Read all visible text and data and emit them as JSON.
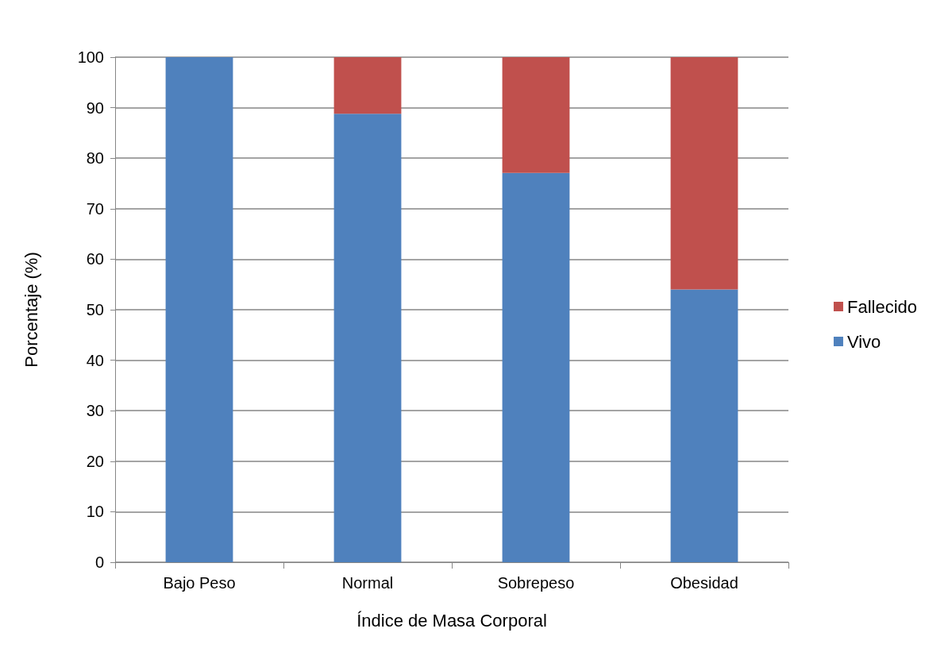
{
  "chart_data": {
    "type": "bar",
    "stacked": true,
    "xlabel": "Índice de Masa Corporal",
    "ylabel": "Porcentaje (%)",
    "categories": [
      "Bajo Peso",
      "Normal",
      "Sobrepeso",
      "Obesidad"
    ],
    "series": [
      {
        "name": "Vivo",
        "color": "#4f81bd",
        "values": [
          100,
          88.8,
          77.1,
          54.0
        ]
      },
      {
        "name": "Fallecido",
        "color": "#c0504d",
        "values": [
          0,
          11.2,
          22.9,
          46.0
        ]
      }
    ],
    "ylim": [
      0,
      100
    ],
    "yticks": [
      0,
      10,
      20,
      30,
      40,
      50,
      60,
      70,
      80,
      90,
      100
    ],
    "grid": "y",
    "legend": "right"
  }
}
